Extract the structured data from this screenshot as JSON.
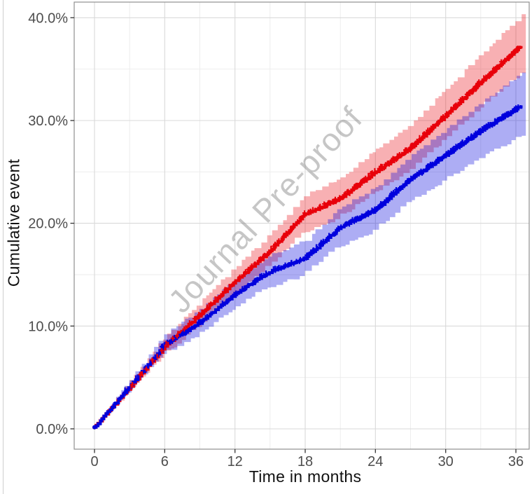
{
  "figure": {
    "watermark_text": "Journal Pre-proof",
    "background_color": "#ffffff"
  },
  "chart_data": {
    "type": "line",
    "subtype": "cumulative-incidence-curves-with-confidence-bands",
    "title": "",
    "xlabel": "Time in months",
    "ylabel": "Cumulative event",
    "xlim": [
      0,
      36
    ],
    "ylim_pct": [
      0,
      40
    ],
    "grid": "major and minor light-gray gridlines on white panel with gray border",
    "legend_position": "none",
    "x_ticks": [
      0,
      6,
      12,
      18,
      24,
      30,
      36
    ],
    "x_tick_labels": [
      "0",
      "6",
      "12",
      "18",
      "24",
      "30",
      "36"
    ],
    "x_minor_ticks": [
      3,
      9,
      15,
      21,
      27,
      33
    ],
    "y_ticks_pct": [
      0,
      10,
      20,
      30,
      40
    ],
    "y_tick_labels": [
      "0.0%",
      "10.0%",
      "20.0%",
      "30.0%",
      "40.0%"
    ],
    "y_minor_ticks_pct": [
      5,
      15,
      25,
      35
    ],
    "annotations": [
      "censor '+' marks densely plotted along both curves"
    ],
    "series": [
      {
        "name": "red-arm",
        "color": "#e8000a",
        "band_color": "rgba(232,0,10,0.31)",
        "x": [
          0,
          3,
          6,
          9,
          12,
          15,
          18,
          21,
          24,
          27,
          30,
          33,
          36
        ],
        "y_pct": [
          0.15,
          4.0,
          8.0,
          11.1,
          14.3,
          17.3,
          20.9,
          22.4,
          25.0,
          27.3,
          30.5,
          33.7,
          36.8
        ],
        "ci_halfwidth_pct": [
          0.15,
          0.7,
          1.0,
          1.3,
          1.5,
          1.7,
          1.9,
          2.0,
          2.2,
          2.4,
          2.6,
          2.8,
          3.0
        ]
      },
      {
        "name": "blue-arm",
        "color": "#0000dd",
        "band_color": "rgba(0,0,221,0.32)",
        "x": [
          0,
          3,
          6,
          9,
          12,
          15,
          18,
          21,
          24,
          27,
          30,
          33,
          36
        ],
        "y_pct": [
          0.15,
          4.1,
          8.2,
          10.3,
          13.1,
          15.3,
          16.6,
          19.6,
          21.3,
          24.3,
          26.6,
          29.0,
          31.1
        ],
        "ci_halfwidth_pct": [
          0.15,
          0.7,
          1.1,
          1.3,
          1.5,
          1.6,
          1.8,
          2.0,
          2.2,
          2.4,
          2.6,
          2.8,
          3.1
        ]
      }
    ]
  }
}
